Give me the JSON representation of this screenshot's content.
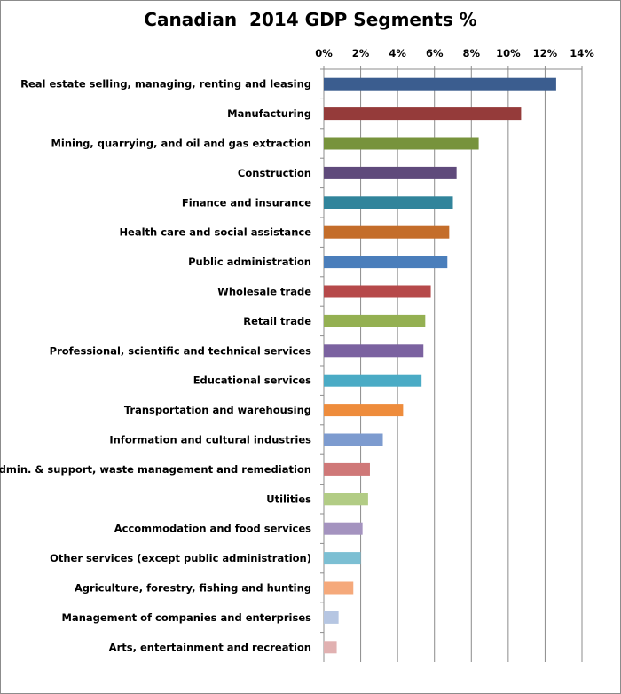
{
  "chart_data": {
    "type": "bar",
    "orientation": "horizontal",
    "title": "Canadian  2014 GDP Segments %",
    "xlabel": "",
    "ylabel": "",
    "xlim": [
      0,
      14
    ],
    "x_ticks": [
      "0%",
      "2%",
      "4%",
      "6%",
      "8%",
      "10%",
      "12%",
      "14%"
    ],
    "x_axis_position": "top",
    "grid": true,
    "legend": "none",
    "categories": [
      "Real estate selling, managing, renting and leasing",
      "Manufacturing",
      "Mining, quarrying, and oil and gas extraction",
      "Construction",
      "Finance and insurance",
      "Health care and social assistance",
      "Public administration",
      "Wholesale trade",
      "Retail trade",
      "Professional, scientific and technical services",
      "Educational services",
      "Transportation and warehousing",
      "Information and cultural industries",
      "Admin. & support, waste management and remediation",
      "Utilities",
      "Accommodation and food services",
      "Other services (except public administration)",
      "Agriculture, forestry, fishing and hunting",
      "Management of companies and enterprises",
      "Arts, entertainment and recreation"
    ],
    "values": [
      12.6,
      10.7,
      8.4,
      7.2,
      7.0,
      6.8,
      6.7,
      5.8,
      5.5,
      5.4,
      5.3,
      4.3,
      3.2,
      2.5,
      2.4,
      2.1,
      2.0,
      1.6,
      0.8,
      0.7
    ],
    "colors": [
      "#3b5d8f",
      "#953b3a",
      "#77933c",
      "#5f4a7b",
      "#31849b",
      "#c46d2a",
      "#4a7ebb",
      "#b6494a",
      "#94b052",
      "#7b62a0",
      "#4aabc5",
      "#ee8c3c",
      "#7d9bcf",
      "#cf7878",
      "#b2cc85",
      "#a493bf",
      "#7cbfd3",
      "#f5a97b",
      "#b6c6e2",
      "#e1b1b1"
    ]
  }
}
